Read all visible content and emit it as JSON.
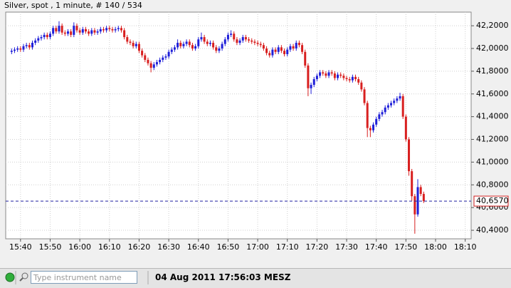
{
  "chart_data": {
    "type": "candlestick",
    "title": "Silver, spot , 1 minute, # 140 / 534",
    "up_color": "#1f1fd8",
    "down_color": "#d81f1f",
    "grid": true,
    "xlim": [
      "15:35",
      "18:12"
    ],
    "ylim": [
      40.325,
      42.32
    ],
    "xticks": [
      "15:40",
      "15:50",
      "16:00",
      "16:10",
      "16:20",
      "16:30",
      "16:40",
      "16:50",
      "17:00",
      "17:10",
      "17:20",
      "17:30",
      "17:40",
      "17:50",
      "18:00",
      "18:10"
    ],
    "yticks": [
      {
        "value": 40.4,
        "label": "40,4000"
      },
      {
        "value": 40.6,
        "label": "40,6000"
      },
      {
        "value": 40.8,
        "label": "40,8000"
      },
      {
        "value": 41.0,
        "label": "41,0000"
      },
      {
        "value": 41.2,
        "label": "41,2000"
      },
      {
        "value": 41.4,
        "label": "41,4000"
      },
      {
        "value": 41.6,
        "label": "41,6000"
      },
      {
        "value": 41.8,
        "label": "41,8000"
      },
      {
        "value": 42.0,
        "label": "42,0000"
      },
      {
        "value": 42.2,
        "label": "42,2000"
      }
    ],
    "last_price": {
      "value": 40.657,
      "label": "40,6570"
    },
    "x": [
      "15:37",
      "15:38",
      "15:39",
      "15:40",
      "15:41",
      "15:42",
      "15:43",
      "15:44",
      "15:45",
      "15:46",
      "15:47",
      "15:48",
      "15:49",
      "15:50",
      "15:51",
      "15:52",
      "15:53",
      "15:54",
      "15:55",
      "15:56",
      "15:57",
      "15:58",
      "15:59",
      "16:00",
      "16:01",
      "16:02",
      "16:03",
      "16:04",
      "16:05",
      "16:06",
      "16:07",
      "16:08",
      "16:09",
      "16:10",
      "16:11",
      "16:12",
      "16:13",
      "16:14",
      "16:15",
      "16:16",
      "16:17",
      "16:18",
      "16:19",
      "16:20",
      "16:21",
      "16:22",
      "16:23",
      "16:24",
      "16:25",
      "16:26",
      "16:27",
      "16:28",
      "16:29",
      "16:30",
      "16:31",
      "16:32",
      "16:33",
      "16:34",
      "16:35",
      "16:36",
      "16:37",
      "16:38",
      "16:39",
      "16:40",
      "16:41",
      "16:42",
      "16:43",
      "16:44",
      "16:45",
      "16:46",
      "16:47",
      "16:48",
      "16:49",
      "16:50",
      "16:51",
      "16:52",
      "16:53",
      "16:54",
      "16:55",
      "16:56",
      "16:57",
      "16:58",
      "16:59",
      "17:00",
      "17:01",
      "17:02",
      "17:03",
      "17:04",
      "17:05",
      "17:06",
      "17:07",
      "17:08",
      "17:09",
      "17:10",
      "17:11",
      "17:12",
      "17:13",
      "17:14",
      "17:15",
      "17:16",
      "17:17",
      "17:18",
      "17:19",
      "17:20",
      "17:21",
      "17:22",
      "17:23",
      "17:24",
      "17:25",
      "17:26",
      "17:27",
      "17:28",
      "17:29",
      "17:30",
      "17:31",
      "17:32",
      "17:33",
      "17:34",
      "17:35",
      "17:36",
      "17:37",
      "17:38",
      "17:39",
      "17:40",
      "17:41",
      "17:42",
      "17:43",
      "17:44",
      "17:45",
      "17:46",
      "17:47",
      "17:48",
      "17:49",
      "17:50",
      "17:51",
      "17:52",
      "17:53",
      "17:54",
      "17:55",
      "17:56"
    ],
    "open": [
      41.97,
      41.98,
      41.99,
      42.0,
      41.99,
      42.02,
      42.03,
      42.01,
      42.05,
      42.07,
      42.09,
      42.1,
      42.12,
      42.1,
      42.13,
      42.18,
      42.15,
      42.2,
      42.14,
      42.13,
      42.15,
      42.12,
      42.2,
      42.16,
      42.14,
      42.17,
      42.15,
      42.13,
      42.16,
      42.14,
      42.15,
      42.17,
      42.16,
      42.18,
      42.17,
      42.16,
      42.17,
      42.18,
      42.16,
      42.1,
      42.06,
      42.05,
      42.02,
      42.04,
      41.98,
      41.94,
      41.9,
      41.87,
      41.83,
      41.86,
      41.88,
      41.9,
      41.92,
      41.93,
      41.97,
      41.99,
      42.01,
      42.05,
      42.02,
      42.04,
      42.06,
      42.03,
      42.0,
      42.02,
      42.08,
      42.1,
      42.06,
      42.04,
      42.05,
      42.01,
      41.98,
      42.0,
      42.04,
      42.08,
      42.12,
      42.13,
      42.08,
      42.05,
      42.07,
      42.1,
      42.08,
      42.07,
      42.06,
      42.05,
      42.04,
      42.03,
      42.0,
      41.96,
      41.94,
      41.99,
      41.97,
      42.01,
      41.98,
      41.95,
      41.99,
      42.02,
      42.0,
      42.05,
      42.03,
      41.97,
      41.85,
      41.65,
      41.68,
      41.73,
      41.76,
      41.79,
      41.78,
      41.76,
      41.79,
      41.78,
      41.74,
      41.77,
      41.76,
      41.74,
      41.73,
      41.72,
      41.75,
      41.73,
      41.7,
      41.64,
      41.52,
      41.3,
      41.28,
      41.33,
      41.38,
      41.42,
      41.44,
      41.48,
      41.5,
      41.52,
      41.54,
      41.56,
      41.58,
      41.4,
      41.2,
      40.92,
      40.7,
      40.54,
      40.78,
      40.72
    ],
    "high": [
      42.0,
      42.01,
      42.02,
      42.02,
      42.04,
      42.05,
      42.05,
      42.07,
      42.09,
      42.11,
      42.12,
      42.14,
      42.14,
      42.15,
      42.2,
      42.2,
      42.24,
      42.22,
      42.16,
      42.17,
      42.17,
      42.23,
      42.22,
      42.18,
      42.19,
      42.19,
      42.17,
      42.18,
      42.18,
      42.17,
      42.19,
      42.19,
      42.2,
      42.2,
      42.19,
      42.19,
      42.2,
      42.2,
      42.18,
      42.12,
      42.08,
      42.07,
      42.06,
      42.06,
      42.0,
      41.96,
      41.92,
      41.89,
      41.88,
      41.9,
      41.92,
      41.94,
      41.95,
      41.99,
      42.01,
      42.03,
      42.08,
      42.07,
      42.06,
      42.08,
      42.08,
      42.05,
      42.04,
      42.1,
      42.14,
      42.12,
      42.08,
      42.07,
      42.07,
      42.03,
      42.02,
      42.06,
      42.1,
      42.14,
      42.16,
      42.15,
      42.1,
      42.09,
      42.12,
      42.12,
      42.1,
      42.09,
      42.08,
      42.07,
      42.06,
      42.05,
      42.02,
      41.98,
      42.01,
      42.01,
      42.03,
      42.03,
      42.0,
      42.01,
      42.04,
      42.04,
      42.07,
      42.07,
      42.05,
      41.99,
      41.87,
      41.7,
      41.75,
      41.78,
      41.81,
      41.81,
      41.8,
      41.81,
      41.81,
      41.8,
      41.79,
      41.79,
      41.78,
      41.76,
      41.75,
      41.77,
      41.77,
      41.75,
      41.72,
      41.66,
      41.54,
      41.32,
      41.35,
      41.4,
      41.44,
      41.46,
      41.5,
      41.52,
      41.54,
      41.56,
      41.58,
      41.61,
      41.6,
      41.42,
      41.22,
      40.94,
      40.72,
      40.85,
      40.8,
      40.74
    ],
    "low": [
      41.95,
      41.96,
      41.97,
      41.97,
      41.97,
      42.0,
      41.99,
      41.99,
      42.03,
      42.05,
      42.07,
      42.08,
      42.08,
      42.08,
      42.11,
      42.13,
      42.13,
      42.12,
      42.11,
      42.11,
      42.1,
      42.1,
      42.14,
      42.12,
      42.12,
      42.13,
      42.11,
      42.11,
      42.12,
      42.12,
      42.13,
      42.14,
      42.14,
      42.15,
      42.14,
      42.14,
      42.15,
      42.14,
      42.08,
      42.04,
      42.03,
      42.0,
      42.0,
      41.96,
      41.92,
      41.88,
      41.85,
      41.79,
      41.81,
      41.84,
      41.86,
      41.88,
      41.9,
      41.91,
      41.95,
      41.97,
      41.99,
      42.0,
      42.0,
      42.02,
      42.01,
      41.98,
      41.98,
      42.0,
      42.06,
      42.04,
      42.02,
      42.02,
      41.99,
      41.96,
      41.96,
      41.98,
      42.02,
      42.06,
      42.1,
      42.06,
      42.03,
      42.03,
      42.05,
      42.06,
      42.05,
      42.04,
      42.03,
      42.02,
      42.01,
      41.98,
      41.94,
      41.92,
      41.92,
      41.95,
      41.95,
      41.96,
      41.93,
      41.93,
      41.97,
      41.98,
      41.98,
      42.01,
      41.95,
      41.83,
      41.58,
      41.6,
      41.66,
      41.71,
      41.74,
      41.76,
      41.74,
      41.74,
      41.76,
      41.72,
      41.72,
      41.74,
      41.72,
      41.71,
      41.7,
      41.7,
      41.71,
      41.68,
      41.62,
      41.5,
      41.22,
      41.22,
      41.26,
      41.31,
      41.36,
      41.4,
      41.42,
      41.46,
      41.48,
      41.5,
      41.52,
      41.54,
      41.38,
      41.18,
      40.88,
      40.66,
      40.37,
      40.52,
      40.7,
      40.64
    ],
    "close": [
      41.98,
      41.99,
      42.0,
      41.99,
      42.02,
      42.03,
      42.01,
      42.05,
      42.07,
      42.09,
      42.1,
      42.12,
      42.1,
      42.13,
      42.18,
      42.15,
      42.2,
      42.14,
      42.13,
      42.15,
      42.12,
      42.2,
      42.16,
      42.14,
      42.17,
      42.15,
      42.13,
      42.16,
      42.14,
      42.15,
      42.17,
      42.16,
      42.18,
      42.17,
      42.16,
      42.17,
      42.18,
      42.16,
      42.1,
      42.06,
      42.05,
      42.02,
      42.04,
      41.98,
      41.94,
      41.9,
      41.87,
      41.83,
      41.86,
      41.88,
      41.9,
      41.92,
      41.93,
      41.97,
      41.99,
      42.01,
      42.05,
      42.02,
      42.04,
      42.06,
      42.03,
      42.0,
      42.02,
      42.08,
      42.1,
      42.06,
      42.04,
      42.05,
      42.01,
      41.98,
      42.0,
      42.04,
      42.08,
      42.12,
      42.13,
      42.08,
      42.05,
      42.07,
      42.1,
      42.08,
      42.07,
      42.06,
      42.05,
      42.04,
      42.03,
      42.0,
      41.96,
      41.94,
      41.99,
      41.97,
      42.01,
      41.98,
      41.95,
      41.99,
      42.02,
      42.0,
      42.05,
      42.03,
      41.97,
      41.85,
      41.65,
      41.68,
      41.73,
      41.76,
      41.79,
      41.78,
      41.76,
      41.79,
      41.78,
      41.74,
      41.77,
      41.76,
      41.74,
      41.73,
      41.72,
      41.75,
      41.73,
      41.7,
      41.64,
      41.52,
      41.3,
      41.28,
      41.33,
      41.38,
      41.42,
      41.44,
      41.48,
      41.5,
      41.52,
      41.54,
      41.56,
      41.58,
      41.4,
      41.2,
      40.92,
      40.7,
      40.54,
      40.78,
      40.72,
      40.657
    ]
  },
  "status_bar": {
    "search_placeholder": "Type instrument name",
    "timestamp": "04 Aug 2011 17:56:03 MESZ"
  }
}
